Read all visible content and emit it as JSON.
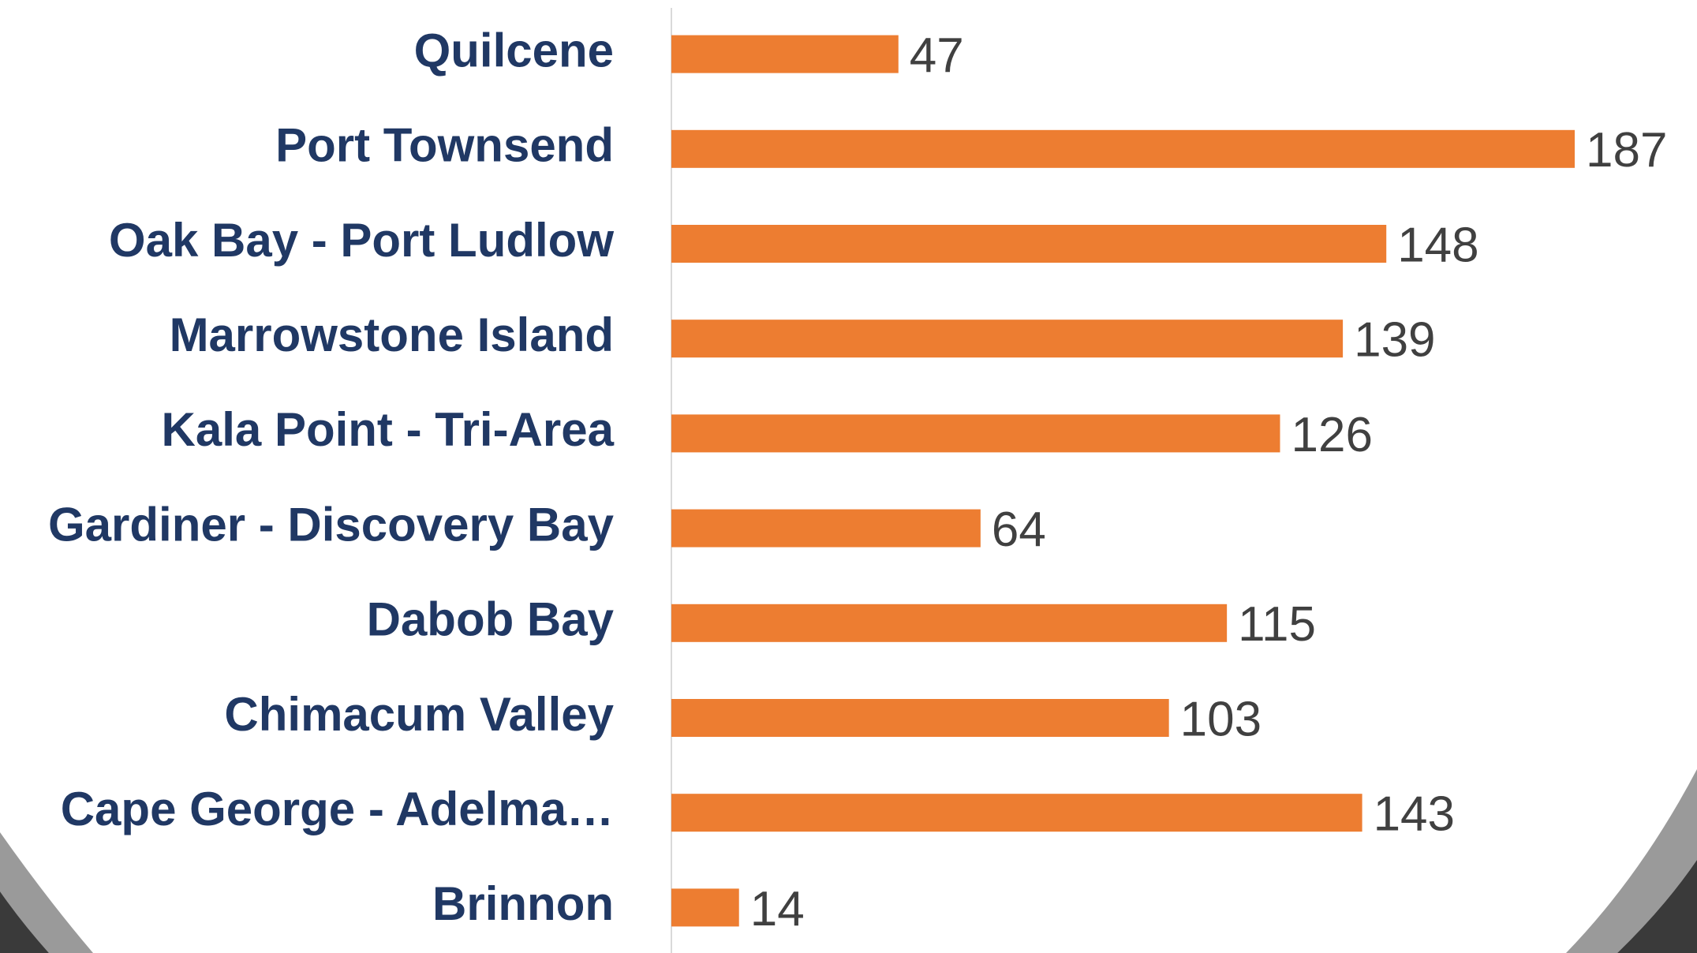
{
  "chart_data": {
    "type": "bar",
    "orientation": "horizontal",
    "categories": [
      "Quilcene",
      "Port Townsend",
      "Oak Bay - Port Ludlow",
      "Marrowstone Island",
      "Kala Point - Tri-Area",
      "Gardiner - Discovery Bay",
      "Dabob Bay",
      "Chimacum Valley",
      "Cape George - Adelma…",
      "Brinnon"
    ],
    "values": [
      47,
      187,
      148,
      139,
      126,
      64,
      115,
      103,
      143,
      14
    ],
    "color": "#ed7d31"
  }
}
